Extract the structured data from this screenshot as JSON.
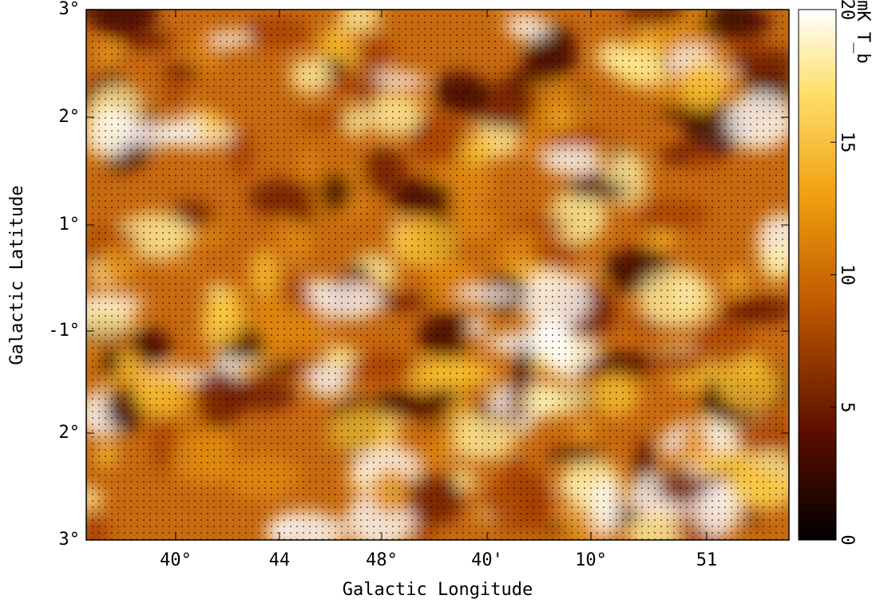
{
  "axes": {
    "x_label": "Galactic Longitude",
    "y_label": "Galactic Latitude",
    "x_ticks": [
      "40°",
      "44",
      "48°",
      "40'",
      "10°",
      "51"
    ],
    "y_ticks": [
      "3°",
      "2°",
      "1°",
      "-1°",
      "2°",
      "3°"
    ]
  },
  "colorbar": {
    "label": "mK T_b",
    "ticks": [
      "20",
      "15",
      "10",
      "5",
      "0"
    ]
  }
}
